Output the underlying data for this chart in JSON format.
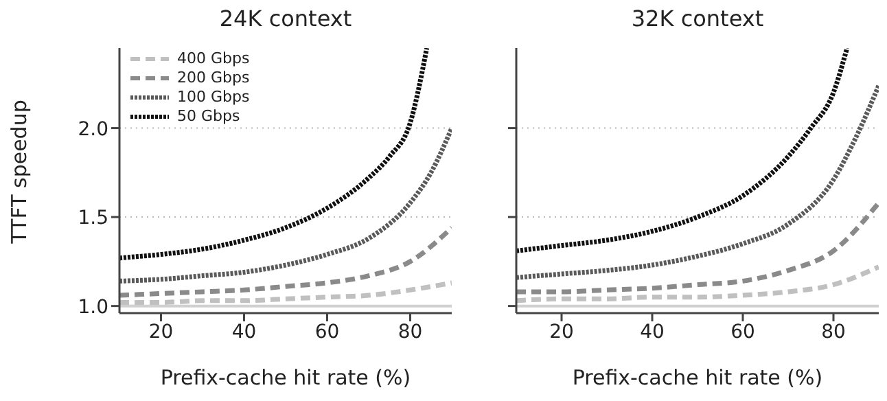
{
  "chart_data": [
    {
      "type": "line",
      "title": "24K context",
      "xlabel": "Prefix-cache hit rate (%)",
      "ylabel": "TTFT speedup",
      "xlim": [
        10,
        90
      ],
      "ylim": [
        0.96,
        2.45
      ],
      "xticks": [
        20,
        40,
        60,
        80
      ],
      "yticks": [
        {
          "value": 1.0,
          "label": "1.0"
        },
        1.5,
        {
          "value": 2.0,
          "label": "2.0"
        }
      ],
      "grid": "y",
      "legend": "top left",
      "marker": "none",
      "ref_lines": [
        {
          "axis": "y",
          "value": 1.0,
          "color": "#d0d0d0",
          "line_style": "solid"
        }
      ],
      "series": [
        {
          "name": "400 Gbps",
          "color": "#c0c0c0",
          "line_style": "dashed",
          "x": [
            10,
            20,
            30,
            40,
            50,
            60,
            70,
            80,
            90
          ],
          "values": [
            1.02,
            1.02,
            1.03,
            1.03,
            1.04,
            1.05,
            1.06,
            1.09,
            1.13
          ]
        },
        {
          "name": "200 Gbps",
          "color": "#8a8a8a",
          "line_style": "dashed",
          "x": [
            10,
            20,
            30,
            40,
            50,
            60,
            70,
            80,
            90
          ],
          "values": [
            1.06,
            1.07,
            1.08,
            1.09,
            1.11,
            1.13,
            1.17,
            1.25,
            1.44
          ]
        },
        {
          "name": "100 Gbps",
          "color": "#5a5a5a",
          "line_style": "dotted",
          "x": [
            10,
            20,
            30,
            40,
            50,
            60,
            70,
            80,
            85,
            90
          ],
          "values": [
            1.14,
            1.15,
            1.17,
            1.19,
            1.23,
            1.29,
            1.38,
            1.58,
            1.75,
            2.0
          ]
        },
        {
          "name": "50 Gbps",
          "color": "#111111",
          "line_style": "dotted",
          "x": [
            10,
            20,
            30,
            40,
            50,
            60,
            70,
            75,
            80,
            84
          ],
          "values": [
            1.27,
            1.29,
            1.32,
            1.37,
            1.44,
            1.55,
            1.72,
            1.84,
            2.03,
            2.45
          ]
        }
      ]
    },
    {
      "type": "line",
      "title": "32K context",
      "xlabel": "Prefix-cache hit rate (%)",
      "xlim": [
        10,
        90
      ],
      "ylim": [
        0.96,
        2.45
      ],
      "xticks": [
        20,
        40,
        60,
        80
      ],
      "yticks": [
        1.0,
        1.5,
        2.0
      ],
      "grid": "y",
      "tick_labels": "x",
      "marker": "none",
      "ref_lines": [
        {
          "axis": "y",
          "value": 1.0,
          "color": "#d0d0d0",
          "line_style": "solid"
        }
      ],
      "series": [
        {
          "color": "#c0c0c0",
          "line_style": "dashed",
          "x": [
            10,
            20,
            30,
            40,
            50,
            60,
            70,
            80,
            90
          ],
          "values": [
            1.03,
            1.04,
            1.04,
            1.05,
            1.05,
            1.06,
            1.08,
            1.12,
            1.22
          ]
        },
        {
          "color": "#8a8a8a",
          "line_style": "dashed",
          "x": [
            10,
            20,
            30,
            40,
            50,
            60,
            70,
            80,
            90
          ],
          "values": [
            1.08,
            1.08,
            1.09,
            1.1,
            1.12,
            1.14,
            1.2,
            1.31,
            1.58
          ]
        },
        {
          "color": "#5a5a5a",
          "line_style": "dotted",
          "x": [
            10,
            20,
            30,
            40,
            50,
            60,
            70,
            80,
            85,
            90
          ],
          "values": [
            1.16,
            1.18,
            1.2,
            1.23,
            1.28,
            1.35,
            1.46,
            1.71,
            1.95,
            2.24
          ]
        },
        {
          "color": "#111111",
          "line_style": "dotted",
          "x": [
            10,
            20,
            30,
            40,
            50,
            60,
            70,
            75,
            80,
            83
          ],
          "values": [
            1.31,
            1.34,
            1.37,
            1.42,
            1.5,
            1.62,
            1.84,
            2.0,
            2.2,
            2.45
          ]
        }
      ]
    }
  ]
}
